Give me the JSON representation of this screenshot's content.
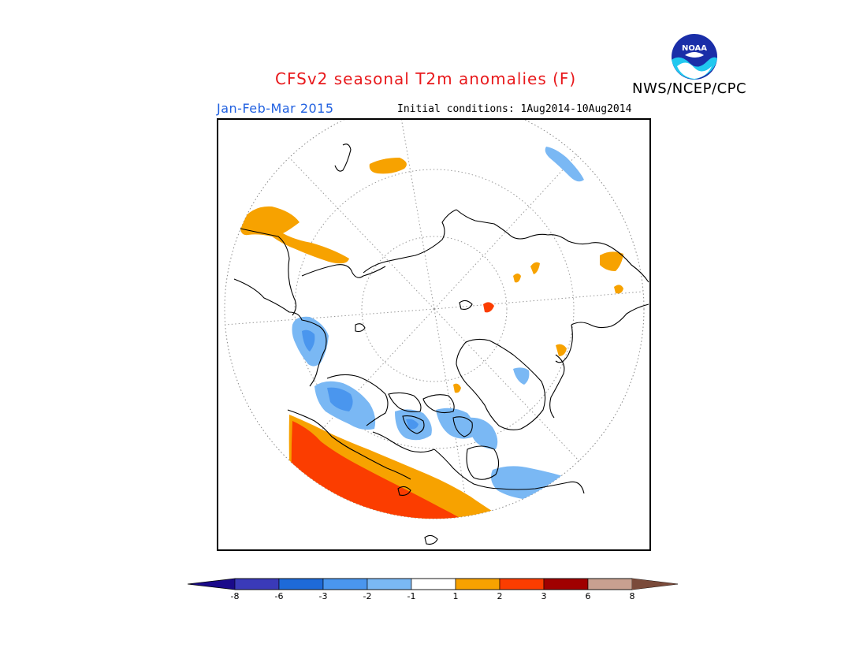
{
  "header": {
    "title": "CFSv2 seasonal T2m anomalies (F)",
    "org": "NWS/NCEP/CPC",
    "season": "Jan-Feb-Mar 2015",
    "initial_conditions": "Initial conditions: 1Aug2014-10Aug2014",
    "logo_text": "NOAA"
  },
  "colors": {
    "title": "#e8191c",
    "season": "#2060e0",
    "warm_1_2": "#f7a200",
    "warm_2_3": "#fb3d00",
    "warm_3_6": "#a00000",
    "warm_6_8": "#c8a090",
    "warm_gt_8": "#7a4a3a",
    "cool_m1_m2": "#7ab8f4",
    "cool_m2_m3": "#4a96ee",
    "cool_m3_m6": "#1e6ad8",
    "cool_m6_m8": "#3a3ab8",
    "cool_lt_m8": "#1a0a8a"
  },
  "legend": {
    "bins": [
      {
        "color": "#3a3ab8"
      },
      {
        "color": "#1e6ad8"
      },
      {
        "color": "#4a96ee"
      },
      {
        "color": "#7ab8f4"
      },
      {
        "color": "#ffffff"
      },
      {
        "color": "#f7a200"
      },
      {
        "color": "#fb3d00"
      },
      {
        "color": "#a00000"
      },
      {
        "color": "#c8a090"
      }
    ],
    "low_arrow_color": "#1a0a8a",
    "high_arrow_color": "#7a4a3a",
    "labels": [
      "-8",
      "-6",
      "-3",
      "-2",
      "-1",
      "1",
      "2",
      "3",
      "6",
      "8"
    ]
  },
  "map": {
    "projection": "north polar stereographic",
    "grid": true,
    "anomaly_regions": [
      {
        "area": "western Canada / Alaska panhandle",
        "category": "2 to 3 F"
      },
      {
        "area": "western Canada interior",
        "category": "1 to 2 F"
      },
      {
        "area": "Alaska",
        "category": "-3 to -1 F"
      },
      {
        "area": "Canadian Arctic Archipelago",
        "category": "-3 to -1 F"
      },
      {
        "area": "Hudson Bay / Quebec",
        "category": "-2 to -1 F"
      },
      {
        "area": "eastern Siberia / Kamchatka",
        "category": "1 to 2 F"
      },
      {
        "area": "Kamchatka coast",
        "category": "-3 to -1 F"
      },
      {
        "area": "Greenland",
        "category": "-2 to -1 F"
      }
    ]
  }
}
